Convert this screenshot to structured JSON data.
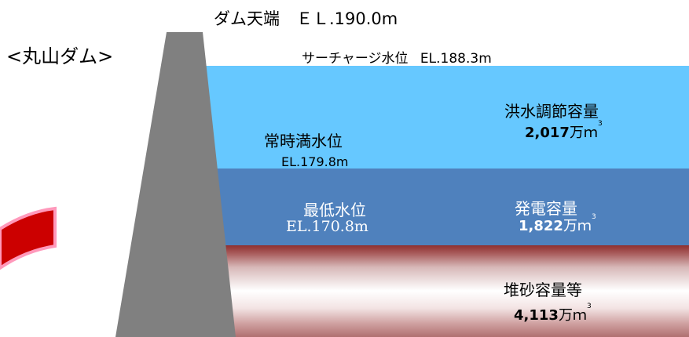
{
  "title": "<丸山ダム>",
  "crest": {
    "label": "ダム天端　ＥＬ.190.0m"
  },
  "surcharge": {
    "label": "サーチャージ水位",
    "value": "EL.188.3m"
  },
  "normal": {
    "label": "常時満水位",
    "value": "EL.179.8m"
  },
  "minimum": {
    "label": "最低水位",
    "value": "EL.170.8m"
  },
  "flood_control": {
    "label": "洪水調節容量",
    "number": "2,017",
    "unit": "万ｍ",
    "sup": "3"
  },
  "power": {
    "label": "発電容量",
    "number": "1,822",
    "unit": "万ｍ",
    "sup": "3"
  },
  "sediment": {
    "label": "堆砂容量等",
    "number": "4,113",
    "unit": "万ｍ",
    "sup": "3"
  },
  "colors": {
    "flood": "#66c8ff",
    "power": "#4f81bd",
    "sediment": "#8f2f2f",
    "dam": "#808080",
    "arrow": "#c00000"
  }
}
